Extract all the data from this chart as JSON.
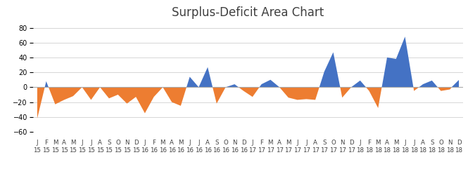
{
  "title": "Surplus-Deficit Area Chart",
  "title_fontsize": 12,
  "ylim": [
    -60,
    90
  ],
  "yticks": [
    -60,
    -40,
    -20,
    0,
    20,
    40,
    60,
    80
  ],
  "surplus_color": "#4472C4",
  "deficit_color": "#ED7D31",
  "background_color": "#FFFFFF",
  "grid_color": "#D0D0D0",
  "labels_month": [
    "J",
    "F",
    "M",
    "A",
    "M",
    "J",
    "J",
    "A",
    "S",
    "O",
    "N",
    "D",
    "J",
    "F",
    "M",
    "A",
    "M",
    "J",
    "J",
    "A",
    "S",
    "O",
    "N",
    "D",
    "J",
    "F",
    "M",
    "A",
    "M",
    "J",
    "J",
    "A",
    "S",
    "O",
    "N",
    "D",
    "J",
    "F",
    "M",
    "A",
    "M",
    "J",
    "J",
    "A",
    "S",
    "O",
    "N",
    "D"
  ],
  "labels_year": [
    "15",
    "15",
    "15",
    "15",
    "15",
    "15",
    "15",
    "15",
    "15",
    "15",
    "15",
    "15",
    "16",
    "16",
    "16",
    "16",
    "16",
    "16",
    "16",
    "16",
    "16",
    "16",
    "16",
    "16",
    "17",
    "17",
    "17",
    "17",
    "17",
    "17",
    "17",
    "17",
    "17",
    "17",
    "17",
    "17",
    "18",
    "18",
    "18",
    "18",
    "18",
    "18",
    "18",
    "18",
    "18",
    "18",
    "18",
    "18"
  ],
  "values": [
    -42,
    8,
    -23,
    -17,
    -12,
    0,
    -17,
    0,
    -15,
    -10,
    -22,
    -13,
    -35,
    -13,
    0,
    -20,
    -25,
    14,
    0,
    27,
    -22,
    0,
    4,
    -5,
    -13,
    4,
    10,
    0,
    -14,
    -17,
    -16,
    -17,
    21,
    47,
    -14,
    0,
    9,
    -5,
    -28,
    40,
    38,
    68,
    -5,
    4,
    9,
    -5,
    -3,
    10
  ]
}
